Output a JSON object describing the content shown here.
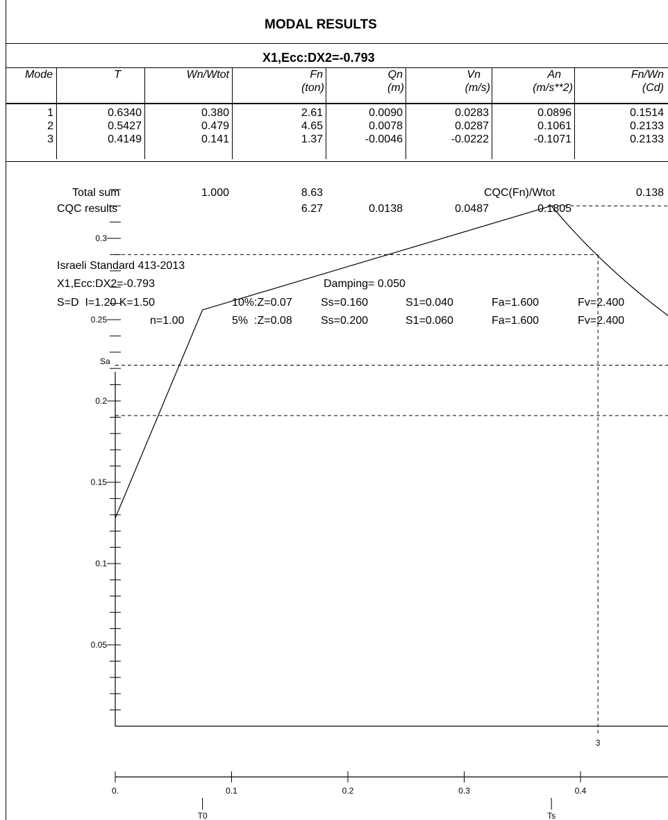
{
  "header": {
    "title": "MODAL  RESULTS",
    "subtitle": "X1,Ecc:DX2=-0.793"
  },
  "table": {
    "columns": [
      {
        "name": "Mode",
        "unit": ""
      },
      {
        "name": "T",
        "unit": ""
      },
      {
        "name": "Wn/Wtot",
        "unit": ""
      },
      {
        "name": "Fn",
        "unit": "(ton)"
      },
      {
        "name": "Qn",
        "unit": "(m)"
      },
      {
        "name": "Vn",
        "unit": "(m/s)"
      },
      {
        "name": "An",
        "unit": "(m/s**2)"
      },
      {
        "name": "Fn/Wn",
        "unit": "(Cd)"
      }
    ],
    "rows": [
      [
        "1",
        "0.6340",
        "0.380",
        "2.61",
        "0.0090",
        "0.0283",
        "0.0896",
        "0.1514"
      ],
      [
        "2",
        "0.5427",
        "0.479",
        "4.65",
        "0.0078",
        "0.0287",
        "0.1061",
        "0.2133"
      ],
      [
        "3",
        "0.4149",
        "0.141",
        "1.37",
        "-0.0046",
        "-0.0222",
        "-0.1071",
        "0.2133"
      ]
    ]
  },
  "summary": {
    "total_label": "Total sum",
    "total_wn": "1.000",
    "total_fn": "8.63",
    "cqc_ratio_label": "CQC(Fn)/Wtot",
    "cqc_ratio_value": "0.138",
    "cqc_label": "CQC results",
    "cqc_fn": "6.27",
    "cqc_qn": "0.0138",
    "cqc_vn": "0.0487",
    "cqc_an": "0.1805"
  },
  "parameters": {
    "standard": "Israeli Standard 413-2013",
    "case": "X1,Ecc:DX2=-0.793",
    "damping": "Damping= 0.050",
    "line1": {
      "sd": "S=D  I=1.20 K=1.50",
      "z": "10%:Z=0.07",
      "ss": "Ss=0.160",
      "s1": "S1=0.040",
      "fa": "Fa=1.600",
      "fv": "Fv=2.400"
    },
    "line2": {
      "sd": "n=1.00",
      "z": "5%  :Z=0.08",
      "ss": "Ss=0.200",
      "s1": "S1=0.060",
      "fa": "Fa=1.600",
      "fv": "Fv=2.400"
    }
  },
  "chart_data": {
    "type": "line",
    "ylabel": "Sa",
    "y_ticks": [
      "0.05",
      "0.1",
      "0.15",
      "0.2",
      "0.25",
      "0.3"
    ],
    "x_ticks": [
      "0.",
      "0.1",
      "0.2",
      "0.3",
      "0.4"
    ],
    "ylim": [
      0,
      0.33
    ],
    "xlim": [
      0,
      0.48
    ],
    "series": [
      {
        "x": [
          0,
          0.075,
          0.375,
          0.42,
          0.48
        ],
        "y": [
          0.128,
          0.256,
          0.32,
          0.286,
          0.255
        ]
      }
    ],
    "reference_lines_y": [
      0.29,
      0.222,
      0.191
    ],
    "reference_line_top_y": 0.32,
    "mode_markers": [
      {
        "label": "3",
        "x": 0.415,
        "y": 0.29
      }
    ],
    "period_markers": [
      {
        "label": "T0",
        "x": 0.075
      },
      {
        "label": "Ts",
        "x": 0.375
      }
    ]
  }
}
